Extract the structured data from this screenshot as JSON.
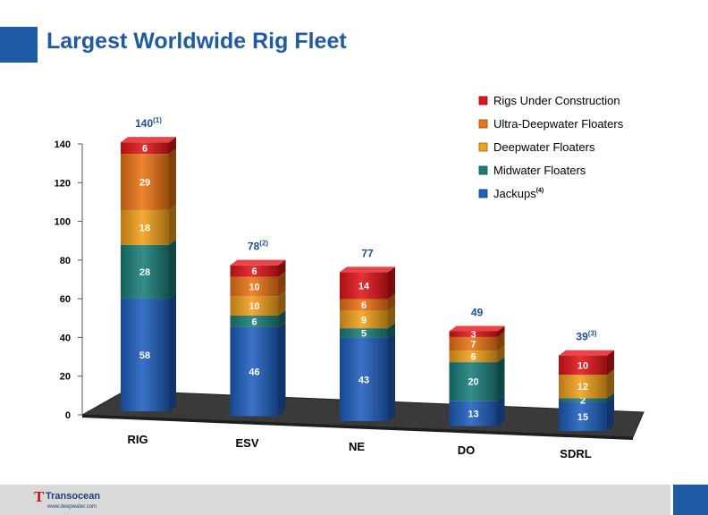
{
  "title": "Largest Worldwide Rig Fleet",
  "footer": {
    "company": "Transocean",
    "url": "www.deepwater.com"
  },
  "colors": {
    "accent": "#1f5aa5",
    "jackups": "#1f5fbf",
    "midwater": "#1a7f7a",
    "deepwater": "#f2a11a",
    "ultra": "#ec7414",
    "construction": "#e3151a"
  },
  "chart_data": {
    "type": "bar",
    "stacked": true,
    "categories": [
      "RIG",
      "ESV",
      "NE",
      "DO",
      "SDRL"
    ],
    "series": [
      {
        "name": "Jackups",
        "superscript": "(4)",
        "color": "#1f5fbf",
        "values": [
          58,
          46,
          43,
          13,
          15
        ]
      },
      {
        "name": "Midwater Floaters",
        "color": "#1a7f7a",
        "values": [
          28,
          6,
          5,
          20,
          2
        ]
      },
      {
        "name": "Deepwater Floaters",
        "color": "#f2a11a",
        "values": [
          18,
          10,
          9,
          6,
          12
        ]
      },
      {
        "name": "Ultra-Deepwater Floaters",
        "color": "#ec7414",
        "values": [
          29,
          10,
          6,
          7,
          0
        ]
      },
      {
        "name": "Rigs Under Construction",
        "color": "#e3151a",
        "values": [
          6,
          6,
          14,
          3,
          10
        ]
      }
    ],
    "totals": [
      {
        "value": "140",
        "note": "(1)"
      },
      {
        "value": "78",
        "note": "(2)"
      },
      {
        "value": "77",
        "note": ""
      },
      {
        "value": "49",
        "note": ""
      },
      {
        "value": "39",
        "note": "(3)"
      }
    ],
    "yticks": [
      "0",
      "20",
      "40",
      "60",
      "80",
      "100",
      "120",
      "140"
    ],
    "ylim": [
      0,
      140
    ],
    "legend_position": "top-right",
    "grid": false
  }
}
